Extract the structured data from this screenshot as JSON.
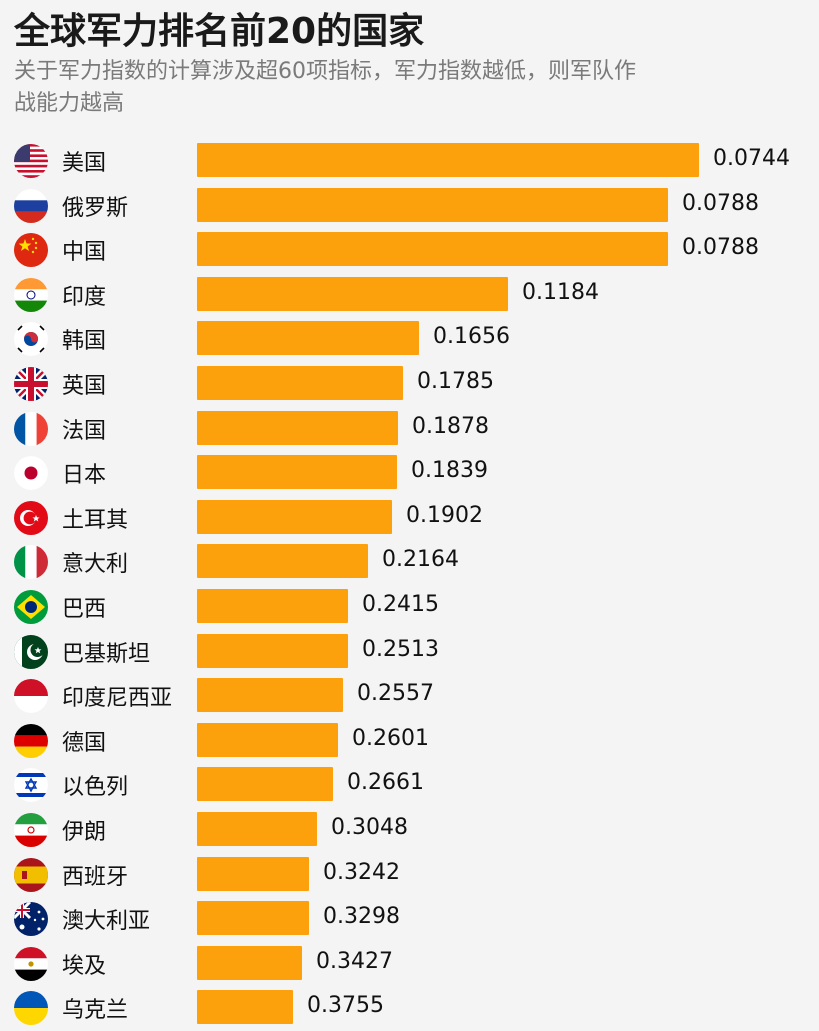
{
  "title": "全球军力排名前20的国家",
  "subtitle": "关于军力指数的计算涉及超60项指标，军力指数越低，则军队作战能力越高",
  "colors": {
    "bar": "#fca00b",
    "background": "#f4f4f4"
  },
  "chart_data": {
    "type": "bar",
    "orientation": "horizontal",
    "title": "全球军力排名前20的国家",
    "subtitle": "关于军力指数的计算涉及超60项指标，军力指数越低，则军队作战能力越高",
    "categories": [
      "美国",
      "俄罗斯",
      "中国",
      "印度",
      "韩国",
      "英国",
      "法国",
      "日本",
      "土耳其",
      "意大利",
      "巴西",
      "巴基斯坦",
      "印度尼西亚",
      "德国",
      "以色列",
      "伊朗",
      "西班牙",
      "澳大利亚",
      "埃及",
      "乌克兰"
    ],
    "values": [
      0.0744,
      0.0788,
      0.0788,
      0.1184,
      0.1656,
      0.1785,
      0.1878,
      0.1839,
      0.1902,
      0.2164,
      0.2415,
      0.2513,
      0.2557,
      0.2601,
      0.2661,
      0.3048,
      0.3242,
      0.3298,
      0.3427,
      0.3755
    ],
    "labels": [
      "0.0744",
      "0.0788",
      "0.0788",
      "0.1184",
      "0.1656",
      "0.1785",
      "0.1878",
      "0.1839",
      "0.1902",
      "0.2164",
      "0.2415",
      "0.2513",
      "0.2557",
      "0.2601",
      "0.2661",
      "0.3048",
      "0.3242",
      "0.3298",
      "0.3427",
      "0.3755"
    ],
    "bar_lengths_relative": [
      1.0,
      0.939,
      0.938,
      0.619,
      0.442,
      0.411,
      0.401,
      0.398,
      0.389,
      0.34,
      0.301,
      0.301,
      0.29,
      0.28,
      0.27,
      0.24,
      0.223,
      0.223,
      0.21,
      0.191
    ],
    "flags": [
      "us-flag-icon",
      "russia-flag-icon",
      "china-flag-icon",
      "india-flag-icon",
      "south-korea-flag-icon",
      "uk-flag-icon",
      "france-flag-icon",
      "japan-flag-icon",
      "turkey-flag-icon",
      "italy-flag-icon",
      "brazil-flag-icon",
      "pakistan-flag-icon",
      "indonesia-flag-icon",
      "germany-flag-icon",
      "israel-flag-icon",
      "iran-flag-icon",
      "spain-flag-icon",
      "australia-flag-icon",
      "egypt-flag-icon",
      "ukraine-flag-icon"
    ],
    "legend": "none",
    "grid": false
  }
}
